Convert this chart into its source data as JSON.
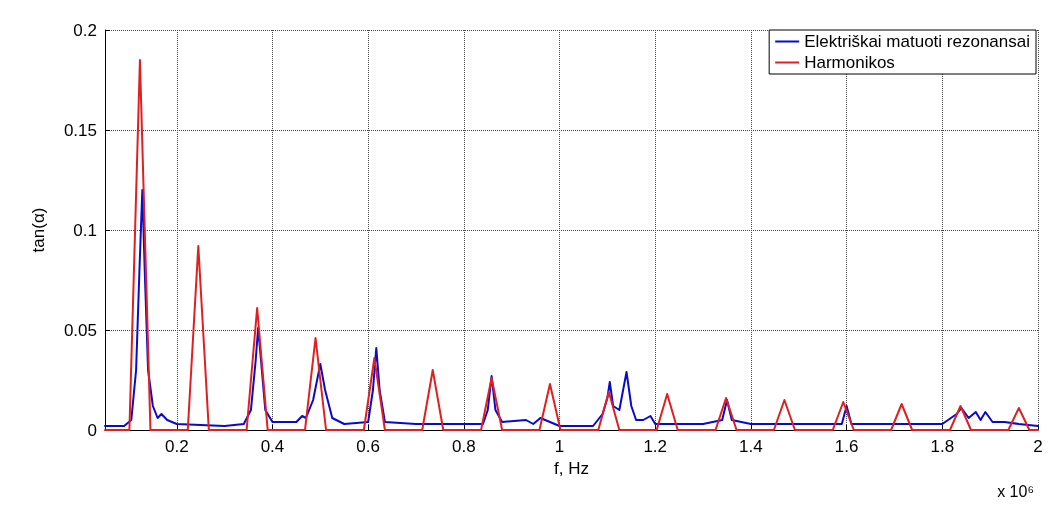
{
  "chart_data": {
    "type": "line",
    "xlabel": "f, Hz",
    "ylabel": "tan(α)",
    "annotations": [
      "x 10⁶"
    ],
    "xlim": [
      0.05,
      2
    ],
    "xticks": [
      0.2,
      0.4,
      0.6,
      0.8,
      1,
      1.2,
      1.4,
      1.6,
      1.8,
      2
    ],
    "ylim": [
      0,
      0.2
    ],
    "yticks": [
      0,
      0.05,
      0.1,
      0.15,
      0.2
    ],
    "grid": true,
    "legend": "top right",
    "marker": "none",
    "line_style": "solid",
    "series": [
      {
        "name": "Elektriškai matuoti rezonansai",
        "color": "#0a0acc",
        "x": [
          0.05,
          0.09,
          0.105,
          0.115,
          0.122,
          0.128,
          0.133,
          0.14,
          0.15,
          0.16,
          0.168,
          0.18,
          0.2,
          0.3,
          0.34,
          0.355,
          0.365,
          0.37,
          0.376,
          0.385,
          0.4,
          0.45,
          0.462,
          0.47,
          0.485,
          0.5,
          0.51,
          0.525,
          0.55,
          0.6,
          0.61,
          0.617,
          0.624,
          0.635,
          0.7,
          0.84,
          0.85,
          0.858,
          0.866,
          0.88,
          0.93,
          0.945,
          0.96,
          0.98,
          1.0,
          1.07,
          1.09,
          1.1,
          1.105,
          1.112,
          1.125,
          1.14,
          1.15,
          1.16,
          1.175,
          1.19,
          1.2,
          1.3,
          1.34,
          1.35,
          1.36,
          1.4,
          1.59,
          1.6,
          1.61,
          1.8,
          1.83,
          1.84,
          1.855,
          1.87,
          1.88,
          1.89,
          1.905,
          1.93,
          1.96,
          2.0
        ],
        "values": [
          0.002,
          0.002,
          0.005,
          0.03,
          0.08,
          0.12,
          0.08,
          0.03,
          0.012,
          0.006,
          0.008,
          0.005,
          0.003,
          0.002,
          0.003,
          0.01,
          0.035,
          0.051,
          0.035,
          0.01,
          0.004,
          0.004,
          0.007,
          0.006,
          0.015,
          0.033,
          0.02,
          0.006,
          0.003,
          0.004,
          0.02,
          0.041,
          0.02,
          0.004,
          0.003,
          0.003,
          0.01,
          0.027,
          0.01,
          0.004,
          0.005,
          0.003,
          0.006,
          0.004,
          0.002,
          0.002,
          0.008,
          0.016,
          0.024,
          0.012,
          0.01,
          0.029,
          0.012,
          0.005,
          0.005,
          0.007,
          0.003,
          0.003,
          0.005,
          0.015,
          0.005,
          0.003,
          0.003,
          0.012,
          0.003,
          0.003,
          0.008,
          0.011,
          0.006,
          0.009,
          0.005,
          0.009,
          0.004,
          0.004,
          0.003,
          0.002
        ]
      },
      {
        "name": "Harmonikos",
        "color": "#e02020",
        "x": [
          0.05,
          0.101,
          0.112,
          0.123,
          0.134,
          0.145,
          0.223,
          0.234,
          0.245,
          0.256,
          0.267,
          0.346,
          0.357,
          0.368,
          0.379,
          0.39,
          0.468,
          0.479,
          0.49,
          0.501,
          0.512,
          0.591,
          0.602,
          0.613,
          0.624,
          0.635,
          0.713,
          0.724,
          0.735,
          0.746,
          0.757,
          0.836,
          0.847,
          0.858,
          0.869,
          0.88,
          0.958,
          0.969,
          0.98,
          0.991,
          1.002,
          1.081,
          1.092,
          1.103,
          1.114,
          1.125,
          1.203,
          1.214,
          1.225,
          1.236,
          1.247,
          1.326,
          1.337,
          1.348,
          1.359,
          1.37,
          1.448,
          1.459,
          1.47,
          1.481,
          1.492,
          1.571,
          1.582,
          1.593,
          1.604,
          1.615,
          1.693,
          1.704,
          1.715,
          1.726,
          1.737,
          1.816,
          1.827,
          1.838,
          1.849,
          1.86,
          1.938,
          1.949,
          1.96,
          1.971,
          1.982,
          2.0
        ],
        "values": [
          0,
          0,
          0.0925,
          0.185,
          0.0925,
          0,
          0,
          0.046,
          0.092,
          0.046,
          0,
          0,
          0.0305,
          0.061,
          0.0305,
          0,
          0,
          0.023,
          0.046,
          0.023,
          0,
          0,
          0.018,
          0.036,
          0.018,
          0,
          0,
          0.015,
          0.03,
          0.015,
          0,
          0,
          0.013,
          0.026,
          0.013,
          0,
          0,
          0.0115,
          0.023,
          0.0115,
          0,
          0,
          0.0095,
          0.019,
          0.0095,
          0,
          0,
          0.009,
          0.018,
          0.009,
          0,
          0,
          0.008,
          0.016,
          0.008,
          0,
          0,
          0.0075,
          0.015,
          0.0075,
          0,
          0,
          0.007,
          0.014,
          0.007,
          0,
          0,
          0.0065,
          0.013,
          0.0065,
          0,
          0,
          0.006,
          0.012,
          0.006,
          0,
          0,
          0.0055,
          0.011,
          0.0055,
          0,
          0
        ]
      }
    ]
  }
}
